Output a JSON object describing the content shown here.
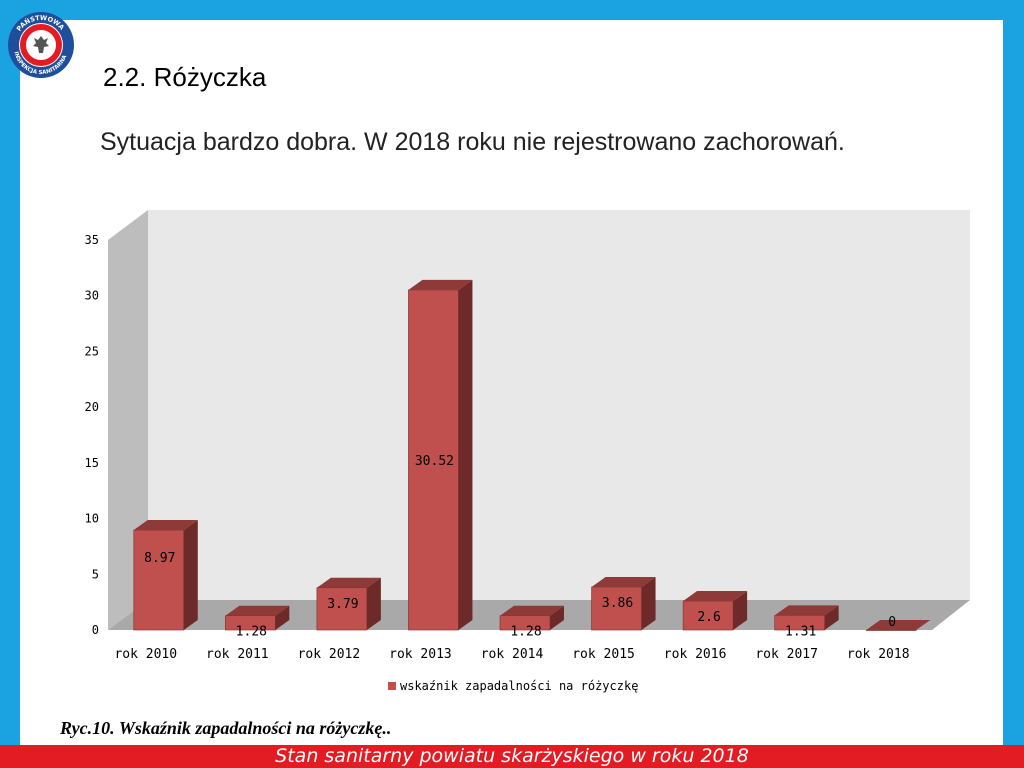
{
  "header": {
    "logo_text": "PAŃSTWOWA INSPEKCJA SANITARNA",
    "title": "2.2. Różyczka",
    "subtitle": "Sytuacja bardzo dobra. W 2018 roku nie rejestrowano zachorowań."
  },
  "caption": "Ryc.10. Wskaźnik zapadalności na różyczkę..",
  "footer": "Stan sanitarny powiatu skarżyskiego w roku 2018",
  "colors": {
    "bar_front": "#c0504d",
    "bar_top": "#8e3a38",
    "bar_side": "#6e2a28",
    "wall": "#e8e8e8",
    "wall_side": "#bdbdbd",
    "floor": "#a9a9a9",
    "frame": "#1aa3e0",
    "footer": "#e31b23"
  },
  "chart_data": {
    "type": "bar",
    "categories": [
      "rok 2010",
      "rok 2011",
      "rok 2012",
      "rok 2013",
      "rok 2014",
      "rok 2015",
      "rok 2016",
      "rok 2017",
      "rok 2018"
    ],
    "series": [
      {
        "name": "wskaźnik zapadalności na różyczkę",
        "values": [
          8.97,
          1.28,
          3.79,
          30.52,
          1.28,
          3.86,
          2.6,
          1.31,
          0
        ],
        "labels": [
          "8.97",
          "1.28",
          "3.79",
          "30.52",
          "1.28",
          "3.86",
          "2.6",
          "1.31",
          "0"
        ]
      }
    ],
    "yticks": [
      "0",
      "5",
      "10",
      "15",
      "20",
      "25",
      "30",
      "35"
    ],
    "ylim": [
      0,
      35
    ],
    "grid": false,
    "legend": "bottom",
    "style": "3d-bar"
  }
}
